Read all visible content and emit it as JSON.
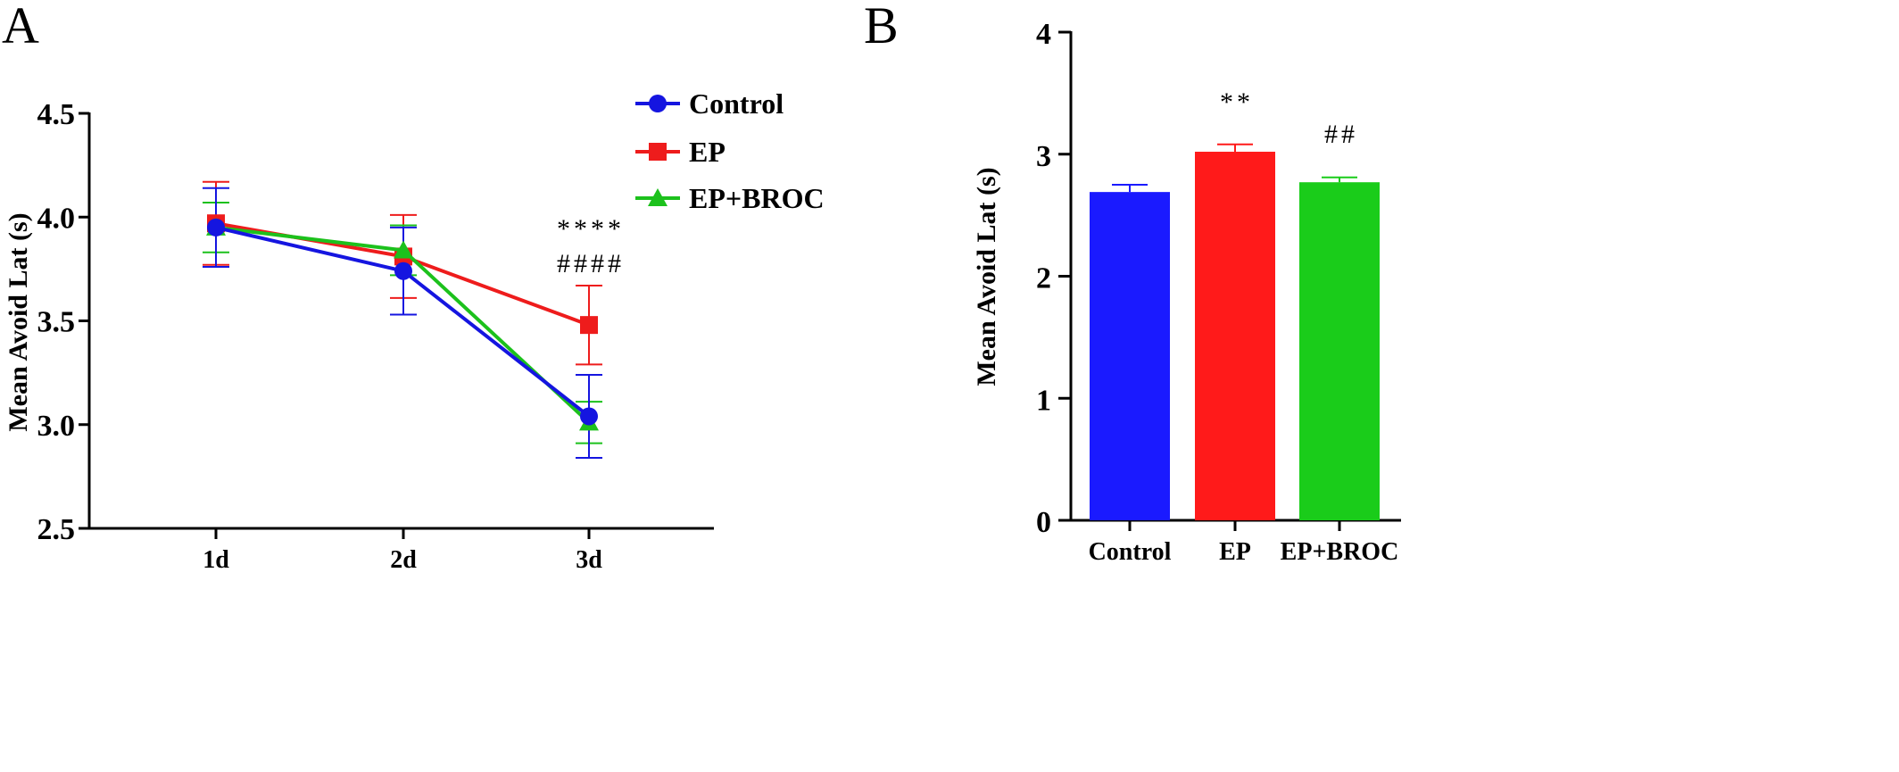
{
  "panels": {
    "a": {
      "letter": "A"
    },
    "b": {
      "letter": "B"
    }
  },
  "chart_data": [
    {
      "type": "line",
      "panel": "A",
      "title": "",
      "xlabel": "",
      "ylabel": "Mean Avoid Lat (s)",
      "categories": [
        "1d",
        "2d",
        "3d"
      ],
      "ylim": [
        2.5,
        4.5
      ],
      "yticks": [
        "2.5",
        "3.0",
        "3.5",
        "4.0",
        "4.5"
      ],
      "legend_position": "top-right",
      "series": [
        {
          "name": "Control",
          "color": "#1515e0",
          "marker": "circle",
          "values": [
            3.95,
            3.74,
            3.04
          ],
          "errors": [
            0.19,
            0.21,
            0.2
          ]
        },
        {
          "name": "EP",
          "color": "#ee1c1c",
          "marker": "square",
          "values": [
            3.97,
            3.81,
            3.48
          ],
          "errors": [
            0.2,
            0.2,
            0.19
          ]
        },
        {
          "name": "EP+BROC",
          "color": "#1cc11c",
          "marker": "triangle",
          "values": [
            3.95,
            3.84,
            3.01
          ],
          "errors": [
            0.12,
            0.12,
            0.1
          ]
        }
      ],
      "annotations": [
        {
          "category": "3d",
          "text": "****"
        },
        {
          "category": "3d",
          "text": "####"
        }
      ]
    },
    {
      "type": "bar",
      "panel": "B",
      "title": "",
      "xlabel": "",
      "ylabel": "Mean Avoid Lat (s)",
      "categories": [
        "Control",
        "EP",
        "EP+BROC"
      ],
      "values": [
        2.69,
        3.02,
        2.77
      ],
      "errors": [
        0.06,
        0.06,
        0.04
      ],
      "colors": [
        "#1a1aff",
        "#ff1a1a",
        "#1acc1a"
      ],
      "ylim": [
        0,
        4
      ],
      "yticks": [
        "0",
        "1",
        "2",
        "3",
        "4"
      ],
      "annotations": [
        {
          "category": "EP",
          "text": "**"
        },
        {
          "category": "EP+BROC",
          "text": "##"
        }
      ]
    }
  ]
}
